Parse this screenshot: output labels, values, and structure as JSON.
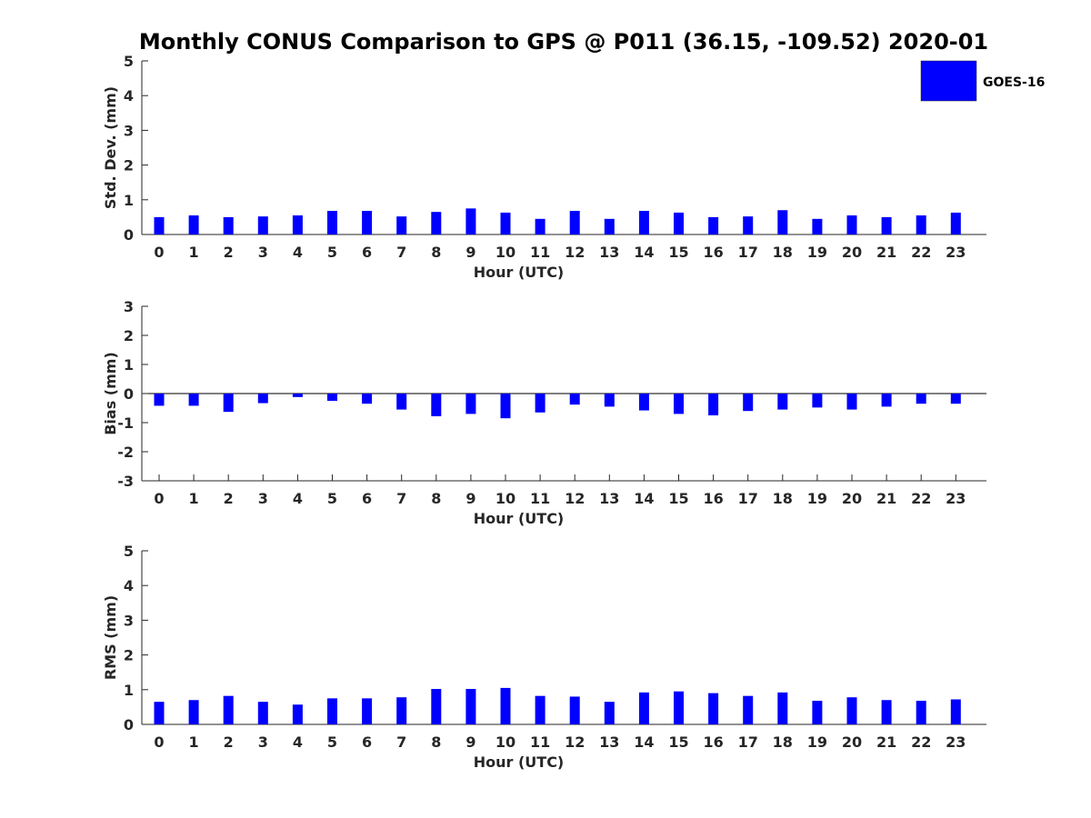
{
  "chart_data": {
    "title": "Monthly CONUS Comparison to GPS @ P011 (36.15, -109.52) 2020-01",
    "type": "bar",
    "legend": {
      "label": "GOES-16",
      "color": "#0000ff",
      "placement": "top-right"
    },
    "categories": [
      "0",
      "1",
      "2",
      "3",
      "4",
      "5",
      "6",
      "7",
      "8",
      "9",
      "10",
      "11",
      "12",
      "13",
      "14",
      "15",
      "16",
      "17",
      "18",
      "19",
      "20",
      "21",
      "22",
      "23"
    ],
    "panels": [
      {
        "name": "std-dev",
        "ylabel": "Std. Dev. (mm)",
        "xlabel": "Hour (UTC)",
        "ylim": [
          0,
          5
        ],
        "yticks": [
          "0",
          "1",
          "2",
          "3",
          "4",
          "5"
        ],
        "values": [
          0.5,
          0.55,
          0.5,
          0.52,
          0.55,
          0.68,
          0.68,
          0.52,
          0.65,
          0.75,
          0.63,
          0.45,
          0.68,
          0.45,
          0.68,
          0.63,
          0.5,
          0.52,
          0.7,
          0.45,
          0.55,
          0.5,
          0.55,
          0.63
        ]
      },
      {
        "name": "bias",
        "ylabel": "Bias (mm)",
        "xlabel": "Hour (UTC)",
        "ylim": [
          -3,
          3
        ],
        "yticks": [
          "-3",
          "-2",
          "-1",
          "0",
          "1",
          "2",
          "3"
        ],
        "values": [
          -0.42,
          -0.42,
          -0.63,
          -0.33,
          -0.12,
          -0.25,
          -0.35,
          -0.55,
          -0.78,
          -0.7,
          -0.85,
          -0.65,
          -0.38,
          -0.45,
          -0.58,
          -0.7,
          -0.75,
          -0.6,
          -0.55,
          -0.48,
          -0.55,
          -0.45,
          -0.35,
          -0.35
        ]
      },
      {
        "name": "rms",
        "ylabel": "RMS (mm)",
        "xlabel": "Hour (UTC)",
        "ylim": [
          0,
          5
        ],
        "yticks": [
          "0",
          "1",
          "2",
          "3",
          "4",
          "5"
        ],
        "values": [
          0.65,
          0.7,
          0.82,
          0.65,
          0.57,
          0.75,
          0.75,
          0.78,
          1.02,
          1.02,
          1.05,
          0.82,
          0.8,
          0.65,
          0.92,
          0.95,
          0.9,
          0.82,
          0.92,
          0.68,
          0.78,
          0.7,
          0.68,
          0.72
        ]
      }
    ]
  }
}
